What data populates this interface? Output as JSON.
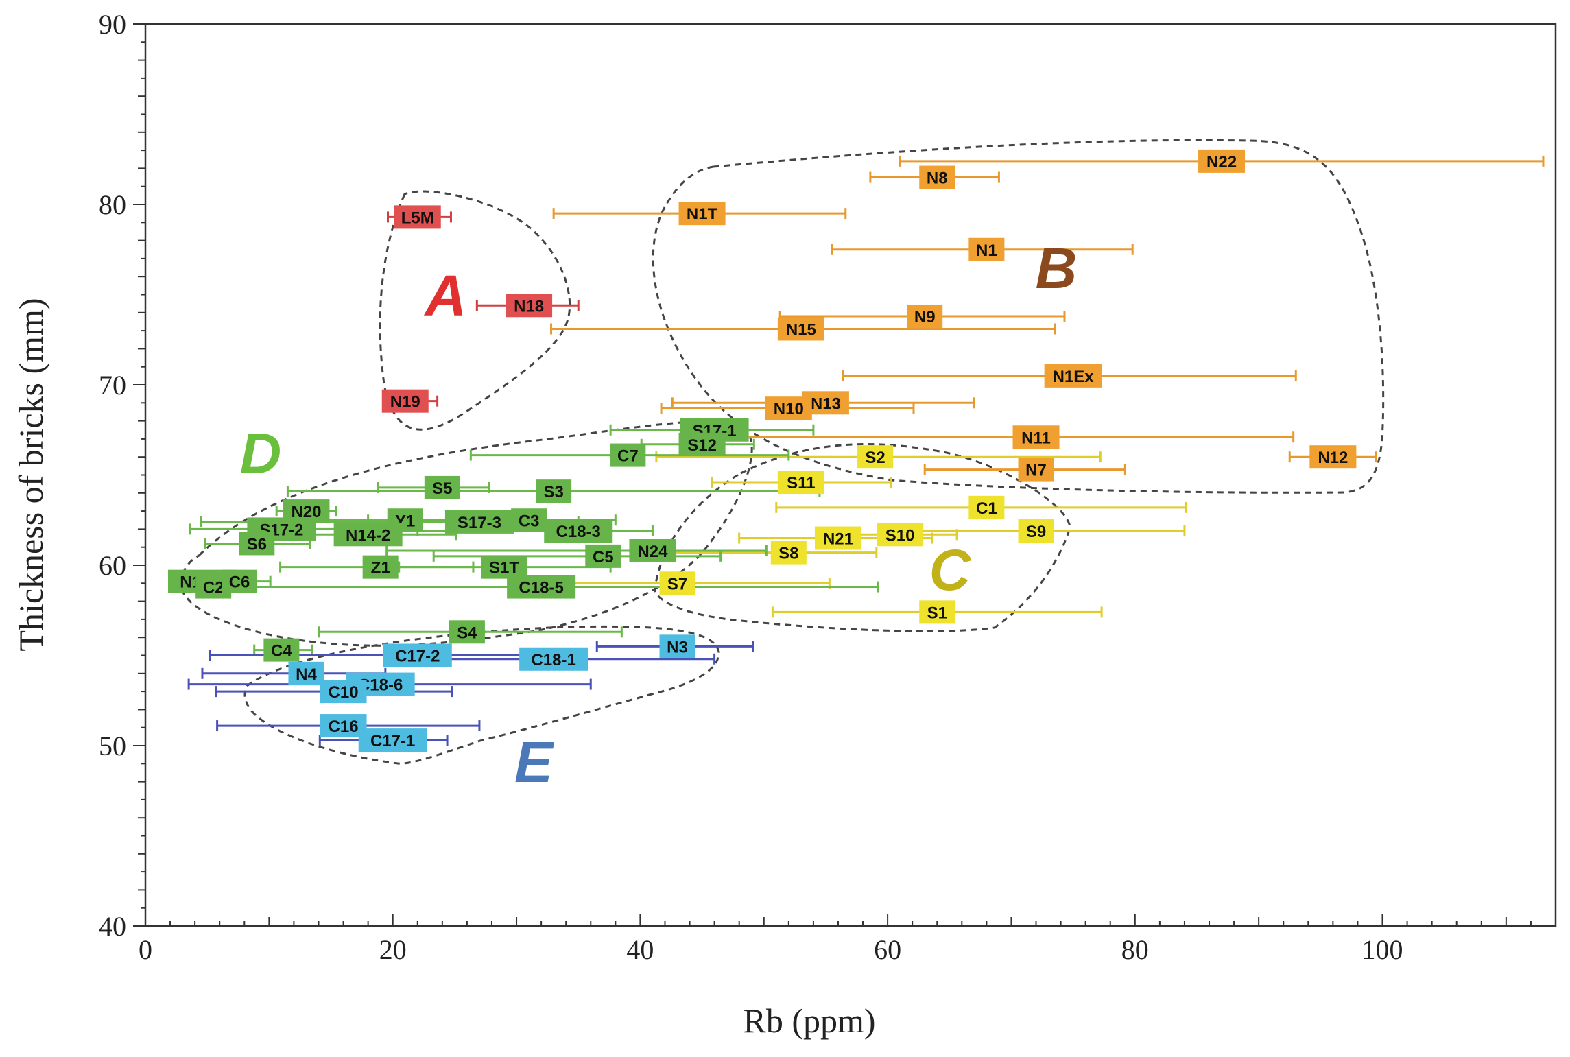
{
  "chart_data": {
    "type": "scatter",
    "title": "",
    "xlabel": "Rb (ppm)",
    "ylabel": "Thickness of bricks (mm)",
    "xlim": [
      0,
      114
    ],
    "ylim": [
      40,
      90
    ],
    "x_ticks": [
      "0",
      "20",
      "40",
      "60",
      "80",
      "100"
    ],
    "y_ticks": [
      "40",
      "50",
      "60",
      "70",
      "80",
      "90"
    ],
    "grid": false,
    "error_bars": "horizontal",
    "groups": [
      {
        "name": "A",
        "color": "#e03030",
        "bar_color": "#d04040",
        "box_color": "#e05050"
      },
      {
        "name": "B",
        "color": "#8b4a1e",
        "bar_color": "#e8992e",
        "box_color": "#f0a030"
      },
      {
        "name": "C",
        "color": "#c2b21a",
        "bar_color": "#e0cc2a",
        "box_color": "#eee22c"
      },
      {
        "name": "D",
        "color": "#6abf3c",
        "bar_color": "#6ab84a",
        "box_color": "#66b44a"
      },
      {
        "name": "E",
        "color": "#4a78b8",
        "bar_color": "#4a52b8",
        "box_color": "#4ebbe0"
      }
    ],
    "points": [
      {
        "label": "L5M",
        "group": "A",
        "x": 22,
        "y": 79.3,
        "xerr": [
          19.6,
          24.7
        ]
      },
      {
        "label": "N18",
        "group": "A",
        "x": 31,
        "y": 74.4,
        "xerr": [
          26.8,
          35.0
        ]
      },
      {
        "label": "N19",
        "group": "A",
        "x": 21,
        "y": 69.1,
        "xerr": [
          19.4,
          23.6
        ]
      },
      {
        "label": "N22",
        "group": "B",
        "x": 87,
        "y": 82.4,
        "xerr": [
          61,
          113
        ]
      },
      {
        "label": "N8",
        "group": "B",
        "x": 64,
        "y": 81.5,
        "xerr": [
          58.6,
          69.0
        ]
      },
      {
        "label": "N1T",
        "group": "B",
        "x": 45,
        "y": 79.5,
        "xerr": [
          33,
          56.6
        ]
      },
      {
        "label": "N1",
        "group": "B",
        "x": 68,
        "y": 77.5,
        "xerr": [
          55.5,
          79.8
        ]
      },
      {
        "label": "N9",
        "group": "B",
        "x": 63,
        "y": 73.8,
        "xerr": [
          51.3,
          74.3
        ]
      },
      {
        "label": "N15",
        "group": "B",
        "x": 53,
        "y": 73.1,
        "xerr": [
          32.8,
          73.5
        ]
      },
      {
        "label": "N1Ex",
        "group": "B",
        "x": 75,
        "y": 70.5,
        "xerr": [
          56.4,
          93.0
        ]
      },
      {
        "label": "N13",
        "group": "B",
        "x": 55,
        "y": 69.0,
        "xerr": [
          42.6,
          67.0
        ]
      },
      {
        "label": "N10",
        "group": "B",
        "x": 52,
        "y": 68.7,
        "xerr": [
          41.7,
          62.1
        ]
      },
      {
        "label": "N11",
        "group": "B",
        "x": 72,
        "y": 67.1,
        "xerr": [
          46.5,
          92.8
        ]
      },
      {
        "label": "N12",
        "group": "B",
        "x": 96,
        "y": 66.0,
        "xerr": [
          92.5,
          99.5
        ]
      },
      {
        "label": "N7",
        "group": "B",
        "x": 72,
        "y": 65.3,
        "xerr": [
          63.0,
          79.2
        ]
      },
      {
        "label": "S2",
        "group": "C",
        "x": 59,
        "y": 66.0,
        "xerr": [
          41.3,
          77.2
        ]
      },
      {
        "label": "S11",
        "group": "C",
        "x": 53,
        "y": 64.6,
        "xerr": [
          45.8,
          60.3
        ]
      },
      {
        "label": "C1",
        "group": "C",
        "x": 68,
        "y": 63.2,
        "xerr": [
          51.0,
          84.1
        ]
      },
      {
        "label": "S9",
        "group": "C",
        "x": 72,
        "y": 61.9,
        "xerr": [
          60.2,
          84.0
        ]
      },
      {
        "label": "N21",
        "group": "C",
        "x": 56,
        "y": 61.5,
        "xerr": [
          48.0,
          63.6
        ]
      },
      {
        "label": "S10",
        "group": "C",
        "x": 61,
        "y": 61.7,
        "xerr": [
          57.6,
          65.6
        ]
      },
      {
        "label": "S8",
        "group": "C",
        "x": 52,
        "y": 60.7,
        "xerr": [
          41.2,
          59.1
        ]
      },
      {
        "label": "S7",
        "group": "C",
        "x": 43,
        "y": 59.0,
        "xerr": [
          30.4,
          55.3
        ]
      },
      {
        "label": "S1",
        "group": "C",
        "x": 64,
        "y": 57.4,
        "xerr": [
          50.7,
          77.3
        ]
      },
      {
        "label": "S17-1",
        "group": "D",
        "x": 46,
        "y": 67.5,
        "xerr": [
          37.6,
          54.0
        ]
      },
      {
        "label": "S12",
        "group": "D",
        "x": 45,
        "y": 66.7,
        "xerr": [
          40.1,
          49.2
        ]
      },
      {
        "label": "C7",
        "group": "D",
        "x": 39,
        "y": 66.1,
        "xerr": [
          26.3,
          52.0
        ]
      },
      {
        "label": "S5",
        "group": "D",
        "x": 24,
        "y": 64.3,
        "xerr": [
          18.8,
          27.8
        ]
      },
      {
        "label": "S3",
        "group": "D",
        "x": 33,
        "y": 64.1,
        "xerr": [
          11.5,
          54.5
        ]
      },
      {
        "label": "N20",
        "group": "D",
        "x": 13,
        "y": 63.0,
        "xerr": [
          10.6,
          15.4
        ]
      },
      {
        "label": "Y1",
        "group": "D",
        "x": 21,
        "y": 62.5,
        "xerr": [
          12.4,
          25.5
        ]
      },
      {
        "label": "S17-3",
        "group": "D",
        "x": 27,
        "y": 62.4,
        "xerr": [
          4.5,
          35.0
        ]
      },
      {
        "label": "C3",
        "group": "D",
        "x": 31,
        "y": 62.5,
        "xerr": [
          18.0,
          38.0
        ]
      },
      {
        "label": "C18-3",
        "group": "D",
        "x": 35,
        "y": 61.9,
        "xerr": [
          22.0,
          41.0
        ]
      },
      {
        "label": "S17-2",
        "group": "D",
        "x": 11,
        "y": 62.0,
        "xerr": [
          3.6,
          17.4
        ]
      },
      {
        "label": "N14-2",
        "group": "D",
        "x": 18,
        "y": 61.7,
        "xerr": [
          9.8,
          25.1
        ]
      },
      {
        "label": "S6",
        "group": "D",
        "x": 9,
        "y": 61.2,
        "xerr": [
          4.8,
          13.3
        ]
      },
      {
        "label": "N24",
        "group": "D",
        "x": 41,
        "y": 60.8,
        "xerr": [
          19.5,
          50.2
        ]
      },
      {
        "label": "C5",
        "group": "D",
        "x": 37,
        "y": 60.5,
        "xerr": [
          23.3,
          46.5
        ]
      },
      {
        "label": "S1T",
        "group": "D",
        "x": 29,
        "y": 59.9,
        "xerr": [
          20.5,
          37.6
        ]
      },
      {
        "label": "Z1",
        "group": "D",
        "x": 19,
        "y": 59.9,
        "xerr": [
          10.9,
          26.5
        ]
      },
      {
        "label": "C18-5",
        "group": "D",
        "x": 32,
        "y": 58.8,
        "xerr": [
          6.1,
          59.2
        ]
      },
      {
        "label": "N14-1",
        "group": "D",
        "x": 4.6,
        "y": 59.1,
        "xerr": [
          2.1,
          7.4
        ]
      },
      {
        "label": "C2",
        "group": "D",
        "x": 5.5,
        "y": 58.8,
        "xerr": [
          2.9,
          8.0
        ]
      },
      {
        "label": "C6",
        "group": "D",
        "x": 7.6,
        "y": 59.1,
        "xerr": [
          3.7,
          10.1
        ]
      },
      {
        "label": "S4",
        "group": "D",
        "x": 26,
        "y": 56.3,
        "xerr": [
          14.0,
          38.5
        ]
      },
      {
        "label": "C4",
        "group": "D",
        "x": 11,
        "y": 55.3,
        "xerr": [
          8.8,
          13.5
        ]
      },
      {
        "label": "N3",
        "group": "E",
        "x": 43,
        "y": 55.5,
        "xerr": [
          36.5,
          49.1
        ]
      },
      {
        "label": "C17-2",
        "group": "E",
        "x": 22,
        "y": 55.0,
        "xerr": [
          5.2,
          34.0
        ]
      },
      {
        "label": "C18-1",
        "group": "E",
        "x": 33,
        "y": 54.8,
        "xerr": [
          20.3,
          46.0
        ]
      },
      {
        "label": "N4",
        "group": "E",
        "x": 13,
        "y": 54.0,
        "xerr": [
          4.6,
          19.4
        ]
      },
      {
        "label": "C18-6",
        "group": "E",
        "x": 19,
        "y": 53.4,
        "xerr": [
          3.5,
          36.0
        ]
      },
      {
        "label": "C10",
        "group": "E",
        "x": 16,
        "y": 53.0,
        "xerr": [
          5.7,
          24.8
        ]
      },
      {
        "label": "C16",
        "group": "E",
        "x": 16,
        "y": 51.1,
        "xerr": [
          5.8,
          27.0
        ]
      },
      {
        "label": "C17-1",
        "group": "E",
        "x": 20,
        "y": 50.3,
        "xerr": [
          14.1,
          24.4
        ]
      }
    ]
  }
}
